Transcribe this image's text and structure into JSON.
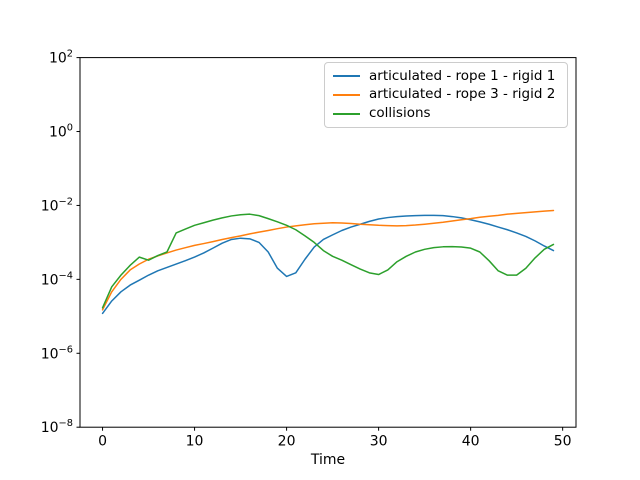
{
  "chart_data": {
    "type": "line",
    "title": "",
    "xlabel": "Time",
    "ylabel": "",
    "y_scale": "log",
    "x_range": [
      -2.45,
      51.45
    ],
    "y_range_exponents": [
      -8,
      2
    ],
    "xticks": [
      0,
      10,
      20,
      30,
      40,
      50
    ],
    "ytick_exponents": [
      2,
      0,
      -2,
      -4,
      -6,
      -8
    ],
    "grid": false,
    "legend_position": "upper right",
    "axis_color": "#000000",
    "x": [
      0,
      1,
      2,
      3,
      4,
      5,
      6,
      7,
      8,
      9,
      10,
      11,
      12,
      13,
      14,
      15,
      16,
      17,
      18,
      19,
      20,
      21,
      22,
      23,
      24,
      25,
      26,
      27,
      28,
      29,
      30,
      31,
      32,
      33,
      34,
      35,
      36,
      37,
      38,
      39,
      40,
      41,
      42,
      43,
      44,
      45,
      46,
      47,
      48,
      49
    ],
    "series": [
      {
        "name": "articulated - rope 1 - rigid 1",
        "color": "#1f77b4",
        "values": [
          1.2e-05,
          2.6e-05,
          4.6e-05,
          7e-05,
          9.5e-05,
          0.00013,
          0.00017,
          0.00021,
          0.00026,
          0.00032,
          0.0004,
          0.00052,
          0.0007,
          0.00095,
          0.0012,
          0.0013,
          0.00125,
          0.001,
          0.00055,
          0.0002,
          0.00012,
          0.00015,
          0.00035,
          0.00075,
          0.0012,
          0.0016,
          0.0021,
          0.0026,
          0.0031,
          0.0037,
          0.0043,
          0.0047,
          0.005,
          0.0052,
          0.0053,
          0.0054,
          0.0054,
          0.0053,
          0.005,
          0.0046,
          0.0041,
          0.0036,
          0.0031,
          0.0026,
          0.0022,
          0.0018,
          0.00145,
          0.0011,
          0.0008,
          0.0006
        ]
      },
      {
        "name": "articulated - rope 3 - rigid 2",
        "color": "#ff7f0e",
        "values": [
          1.5e-05,
          4.6e-05,
          0.0001,
          0.00018,
          0.00026,
          0.00035,
          0.00043,
          0.00052,
          0.00062,
          0.00072,
          0.00083,
          0.00093,
          0.00105,
          0.0012,
          0.00135,
          0.0015,
          0.0017,
          0.0019,
          0.0021,
          0.00235,
          0.0026,
          0.0028,
          0.003,
          0.0032,
          0.0033,
          0.0034,
          0.00335,
          0.00325,
          0.0031,
          0.003,
          0.0029,
          0.00285,
          0.0028,
          0.00285,
          0.00295,
          0.0031,
          0.0033,
          0.0035,
          0.0038,
          0.0041,
          0.0044,
          0.0048,
          0.0051,
          0.0054,
          0.0058,
          0.0061,
          0.0064,
          0.0067,
          0.007,
          0.0073
        ]
      },
      {
        "name": "collisions",
        "color": "#2ca02c",
        "values": [
          1.7e-05,
          6.3e-05,
          0.00013,
          0.00024,
          0.0004,
          0.00033,
          0.00044,
          0.00055,
          0.0018,
          0.0023,
          0.0029,
          0.0034,
          0.004,
          0.0046,
          0.0052,
          0.0056,
          0.0058,
          0.0053,
          0.0044,
          0.0036,
          0.0029,
          0.0022,
          0.0015,
          0.001,
          0.0006,
          0.00042,
          0.00033,
          0.00025,
          0.00019,
          0.00015,
          0.000135,
          0.00018,
          0.0003,
          0.00042,
          0.00055,
          0.00065,
          0.00072,
          0.00076,
          0.00077,
          0.00075,
          0.0007,
          0.00055,
          0.00032,
          0.00017,
          0.00013,
          0.00013,
          0.0002,
          0.00038,
          0.00065,
          0.00088
        ]
      }
    ]
  }
}
